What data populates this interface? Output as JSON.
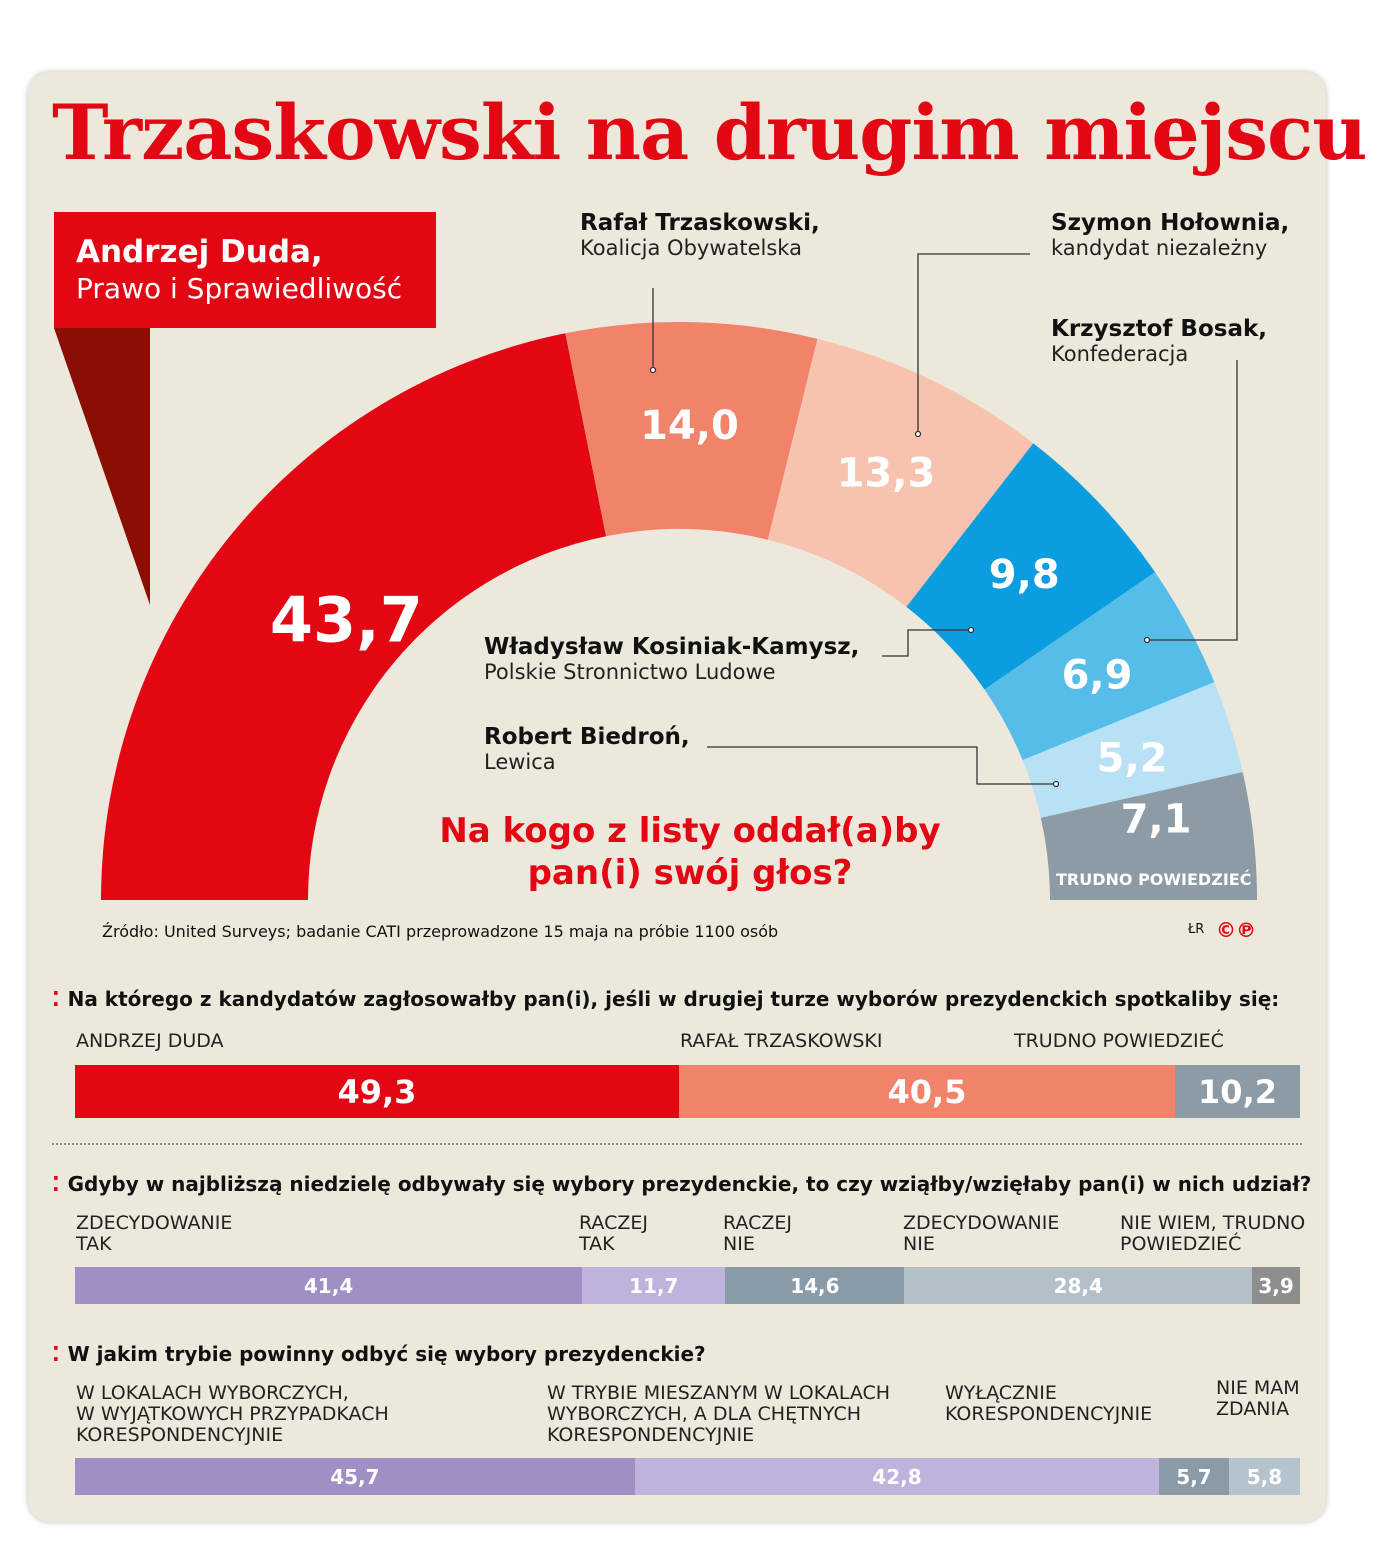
{
  "title": "Trzaskowski na drugim miejscu",
  "chart_data": [
    {
      "type": "pie",
      "variant": "semicircle donut",
      "title": "Na kogo z listy oddał(a)by pan(i) swój głos?",
      "categories": [
        "Andrzej Duda",
        "Rafał Trzaskowski",
        "Szymon Hołownia",
        "Władysław Kosiniak-Kamysz",
        "Krzysztof Bosak",
        "Robert Biedroń",
        "Trudno powiedzieć"
      ],
      "parties": [
        "Prawo i Sprawiedliwość",
        "Koalicja Obywatelska",
        "kandydat niezależny",
        "Polskie Stronnictwo Ludowe",
        "Konfederacja",
        "Lewica",
        ""
      ],
      "name_labels": [
        "Andrzej Duda,",
        "Rafał Trzaskowski,",
        "Szymon Hołownia,",
        "Władysław Kosiniak-Kamysz,",
        "Krzysztof Bosak,",
        "Robert Biedroń,",
        "TRUDNO POWIEDZIEĆ"
      ],
      "values": [
        43.7,
        14.0,
        13.3,
        9.8,
        6.9,
        5.2,
        7.1
      ],
      "value_labels": [
        "43,7",
        "14,0",
        "13,3",
        "9,8",
        "6,9",
        "5,2",
        "7,1"
      ],
      "colors": [
        "#e30613",
        "#f0836a",
        "#f7c3ae",
        "#0a9de0",
        "#56bde9",
        "#b9e1f5",
        "#8c9ba5"
      ]
    },
    {
      "type": "bar",
      "variant": "stacked horizontal",
      "title": "Na którego z kandydatów zagłosowałby pan(i), jeśli w drugiej turze wyborów prezydenckich spotkaliby się:",
      "categories": [
        "ANDRZEJ DUDA",
        "RAFAŁ TRZASKOWSKI",
        "TRUDNO POWIEDZIEĆ"
      ],
      "values": [
        49.3,
        40.5,
        10.2
      ],
      "value_labels": [
        "49,3",
        "40,5",
        "10,2"
      ],
      "colors": [
        "#e30613",
        "#f0836a",
        "#8c9ba5"
      ]
    },
    {
      "type": "bar",
      "variant": "stacked horizontal",
      "title": "Gdyby w najbliższą niedzielę odbywały się wybory prezydenckie, to czy wziąłby/wzięłaby pan(i) w nich udział?",
      "categories": [
        "ZDECYDOWANIE\nTAK",
        "RACZEJ\nTAK",
        "RACZEJ\nNIE",
        "ZDECYDOWANIE\nNIE",
        "NIE WIEM, TRUDNO\nPOWIEDZIEĆ"
      ],
      "values": [
        41.4,
        11.7,
        14.6,
        28.4,
        3.9
      ],
      "value_labels": [
        "41,4",
        "11,7",
        "14,6",
        "28,4",
        "3,9"
      ],
      "colors": [
        "#a08fc4",
        "#bfb2dc",
        "#8a9aa6",
        "#b4c0c8",
        "#8e8e8e"
      ]
    },
    {
      "type": "bar",
      "variant": "stacked horizontal",
      "title": "W jakim trybie powinny odbyć się wybory prezydenckie?",
      "categories": [
        "W LOKALACH WYBORCZYCH,\nW WYJĄTKOWYCH PRZYPADKACH\nKORESPONDENCYJNIE",
        "W TRYBIE MIESZANYM W LOKALACH\nWYBORCZYCH, A DLA CHĘTNYCH\nKORESPONDENCYJNIE",
        "WYŁĄCZNIE\nKORESPONDENCYJNIE",
        "NIE MAM\nZDANIA"
      ],
      "values": [
        45.7,
        42.8,
        5.7,
        5.8
      ],
      "value_labels": [
        "45,7",
        "42,8",
        "5,7",
        "5,8"
      ],
      "colors": [
        "#a08fc4",
        "#bfb2dc",
        "#8a9aa6",
        "#b4c3ce"
      ]
    }
  ],
  "source": "Źródło: United Surveys; badanie CATI przeprowadzone 15 maja na próbie 1100 osób",
  "credit": "ŁR",
  "logo": "©℗"
}
